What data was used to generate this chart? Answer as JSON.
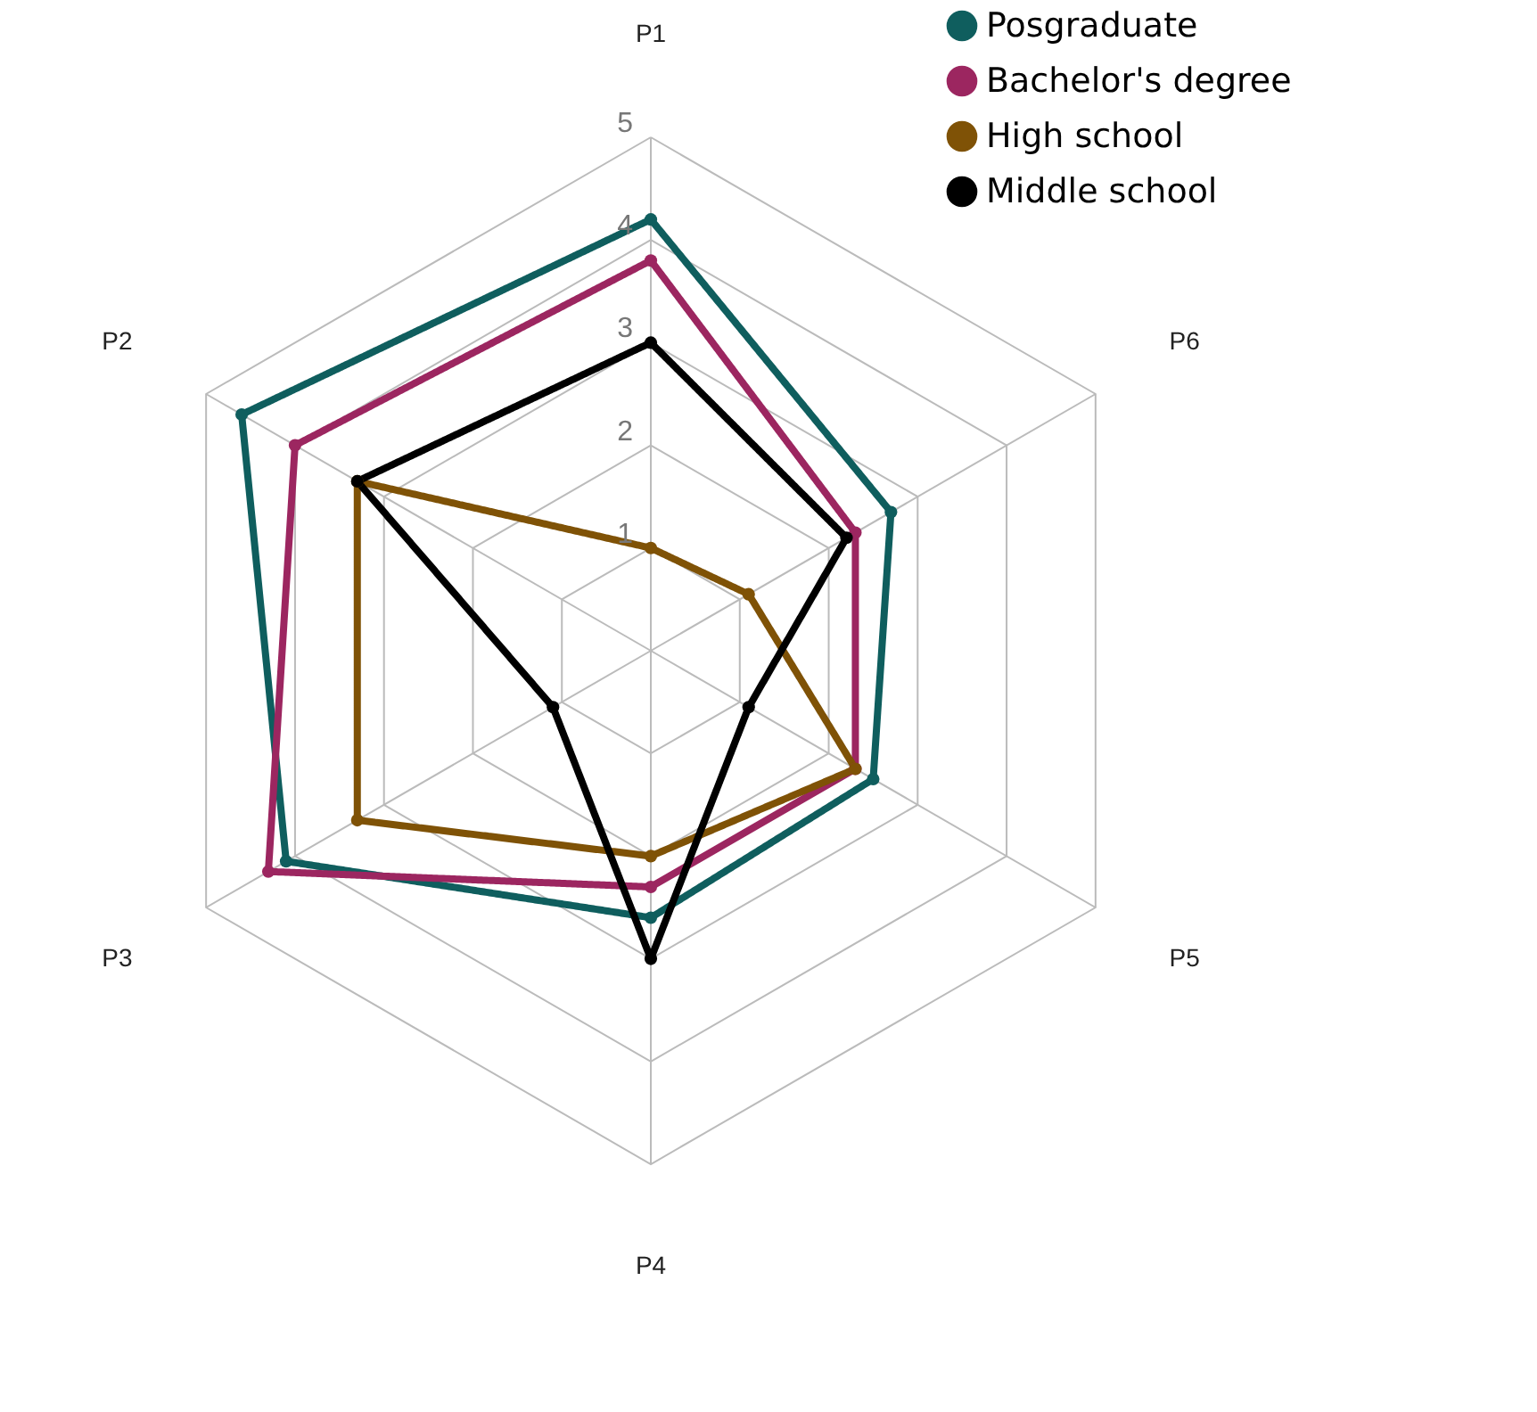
{
  "chart_data": {
    "type": "radar",
    "categories": [
      "P1",
      "P6",
      "P5",
      "P4",
      "P3",
      "P2"
    ],
    "series": [
      {
        "name": "Posgraduate",
        "color": "#0f5e5e",
        "values": [
          4.2,
          2.7,
          2.5,
          2.6,
          4.1,
          4.6
        ]
      },
      {
        "name": "Bachelor's degree",
        "color": "#9c2660",
        "values": [
          3.8,
          2.3,
          2.3,
          2.3,
          4.3,
          4.0
        ]
      },
      {
        "name": "High school",
        "color": "#7f5206",
        "values": [
          1.0,
          1.1,
          2.3,
          2.0,
          3.3,
          3.3
        ]
      },
      {
        "name": "Middle school",
        "color": "#000000",
        "values": [
          3.0,
          2.2,
          1.1,
          3.0,
          1.1,
          3.3
        ]
      }
    ],
    "ylim": [
      0,
      5
    ],
    "yticks": [
      1,
      2,
      3,
      4,
      5
    ],
    "grid": true,
    "legend": "top right",
    "marker": "circle",
    "line_style": "solid"
  }
}
